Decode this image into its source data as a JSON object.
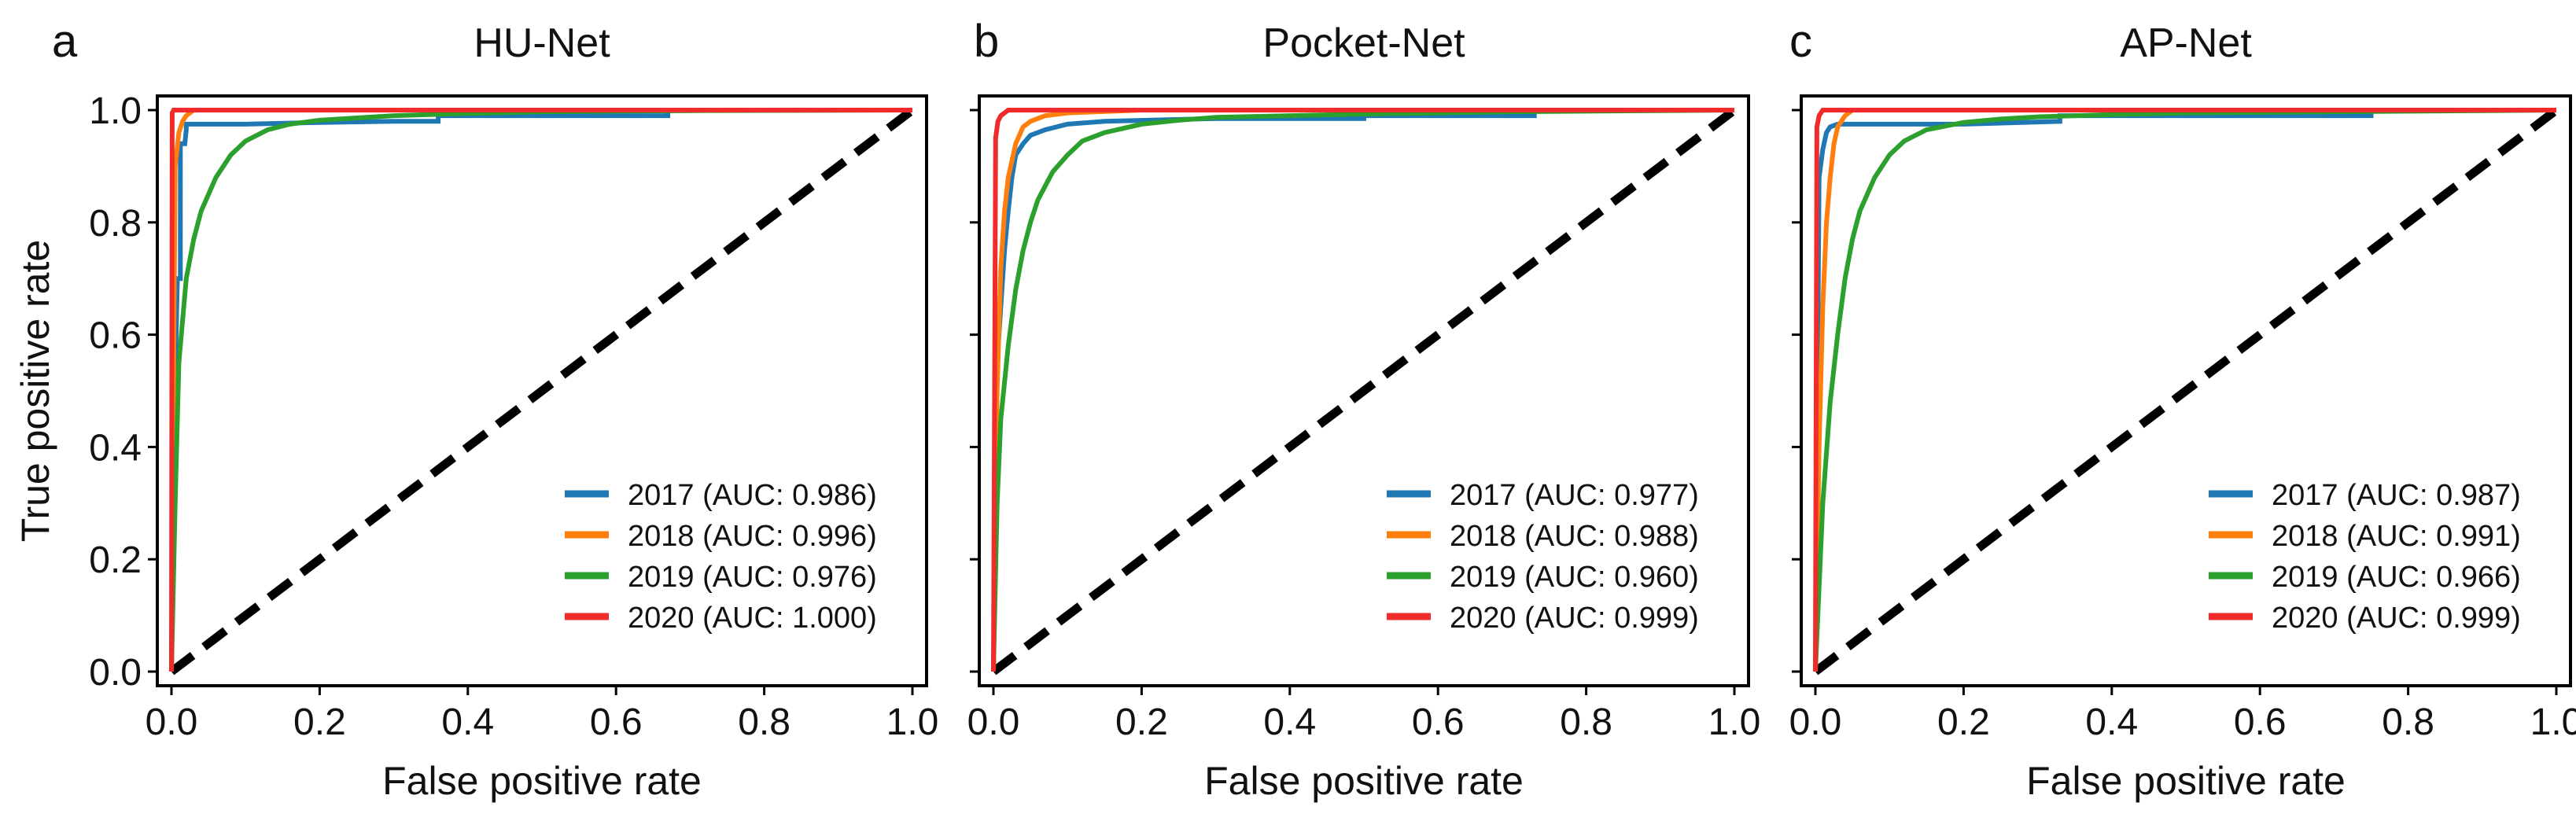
{
  "figure": {
    "xlabel": "False positive rate",
    "ylabel": "True positive rate",
    "ticks": [
      "0.0",
      "0.2",
      "0.4",
      "0.6",
      "0.8",
      "1.0"
    ]
  },
  "chart_data": [
    {
      "type": "line",
      "panel": "a",
      "title": "HU-Net",
      "xlabel": "False positive rate",
      "ylabel": "True positive rate",
      "xlim": [
        0,
        1
      ],
      "ylim": [
        0,
        1
      ],
      "legend_position": "lower-right",
      "diagonal": true,
      "series": [
        {
          "name": "2017",
          "label": "2017 (AUC: 0.986)",
          "color": "#1f77b4",
          "x": [
            0,
            0.003,
            0.008,
            0.012,
            0.012,
            0.018,
            0.02,
            0.02,
            0.05,
            0.1,
            0.2,
            0.3,
            0.36,
            0.36,
            0.5,
            0.67,
            0.67,
            1.0
          ],
          "y": [
            0,
            0.4,
            0.7,
            0.7,
            0.94,
            0.94,
            0.965,
            0.975,
            0.975,
            0.975,
            0.978,
            0.98,
            0.98,
            0.99,
            0.99,
            0.99,
            1.0,
            1.0
          ]
        },
        {
          "name": "2018",
          "label": "2018 (AUC: 0.996)",
          "color": "#ff7f0e",
          "x": [
            0,
            0.005,
            0.01,
            0.015,
            0.02,
            0.03,
            1.0
          ],
          "y": [
            0,
            0.9,
            0.96,
            0.98,
            0.99,
            1.0,
            1.0
          ]
        },
        {
          "name": "2019",
          "label": "2019 (AUC: 0.976)",
          "color": "#2ca02c",
          "x": [
            0,
            0.005,
            0.01,
            0.02,
            0.03,
            0.04,
            0.06,
            0.08,
            0.1,
            0.13,
            0.16,
            0.2,
            0.25,
            0.3,
            0.4,
            0.5,
            0.7,
            1.0
          ],
          "y": [
            0,
            0.3,
            0.55,
            0.7,
            0.77,
            0.82,
            0.88,
            0.92,
            0.945,
            0.965,
            0.975,
            0.982,
            0.986,
            0.99,
            0.994,
            0.997,
            0.999,
            1.0
          ]
        },
        {
          "name": "2020",
          "label": "2020 (AUC: 1.000)",
          "color": "#ef2b2b",
          "x": [
            0,
            0.001,
            0.003,
            1.0
          ],
          "y": [
            0,
            0.995,
            1.0,
            1.0
          ]
        }
      ]
    },
    {
      "type": "line",
      "panel": "b",
      "title": "Pocket-Net",
      "xlabel": "False positive rate",
      "ylabel": "True positive rate",
      "xlim": [
        0,
        1
      ],
      "ylim": [
        0,
        1
      ],
      "legend_position": "lower-right",
      "diagonal": true,
      "series": [
        {
          "name": "2017",
          "label": "2017 (AUC: 0.977)",
          "color": "#1f77b4",
          "x": [
            0,
            0.005,
            0.01,
            0.015,
            0.02,
            0.025,
            0.03,
            0.04,
            0.05,
            0.07,
            0.1,
            0.15,
            0.3,
            0.5,
            0.5,
            0.73,
            0.73,
            1.0
          ],
          "y": [
            0,
            0.55,
            0.65,
            0.75,
            0.82,
            0.88,
            0.92,
            0.94,
            0.955,
            0.965,
            0.975,
            0.98,
            0.985,
            0.985,
            0.99,
            0.99,
            1.0,
            1.0
          ]
        },
        {
          "name": "2018",
          "label": "2018 (AUC: 0.988)",
          "color": "#ff7f0e",
          "x": [
            0,
            0.005,
            0.01,
            0.015,
            0.02,
            0.03,
            0.04,
            0.05,
            0.07,
            0.1,
            0.2,
            1.0
          ],
          "y": [
            0,
            0.5,
            0.72,
            0.82,
            0.88,
            0.94,
            0.97,
            0.98,
            0.99,
            0.995,
            1.0,
            1.0
          ]
        },
        {
          "name": "2019",
          "label": "2019 (AUC: 0.960)",
          "color": "#2ca02c",
          "x": [
            0,
            0.005,
            0.01,
            0.02,
            0.03,
            0.04,
            0.05,
            0.06,
            0.08,
            0.1,
            0.12,
            0.15,
            0.2,
            0.25,
            0.3,
            0.4,
            0.5,
            0.7,
            1.0
          ],
          "y": [
            0,
            0.3,
            0.45,
            0.58,
            0.68,
            0.75,
            0.8,
            0.84,
            0.89,
            0.92,
            0.945,
            0.96,
            0.975,
            0.982,
            0.987,
            0.99,
            0.993,
            0.997,
            1.0
          ]
        },
        {
          "name": "2020",
          "label": "2020 (AUC: 0.999)",
          "color": "#ef2b2b",
          "x": [
            0,
            0.003,
            0.006,
            0.01,
            0.015,
            0.02,
            1.0
          ],
          "y": [
            0,
            0.95,
            0.98,
            0.99,
            0.995,
            1.0,
            1.0
          ]
        }
      ]
    },
    {
      "type": "line",
      "panel": "c",
      "title": "AP-Net",
      "xlabel": "False positive rate",
      "ylabel": "True positive rate",
      "xlim": [
        0,
        1
      ],
      "ylim": [
        0,
        1
      ],
      "legend_position": "lower-right",
      "diagonal": true,
      "series": [
        {
          "name": "2017",
          "label": "2017 (AUC: 0.987)",
          "color": "#1f77b4",
          "x": [
            0,
            0.005,
            0.01,
            0.015,
            0.02,
            0.03,
            0.1,
            0.2,
            0.33,
            0.33,
            0.5,
            0.75,
            0.75,
            1.0
          ],
          "y": [
            0,
            0.88,
            0.93,
            0.96,
            0.97,
            0.975,
            0.975,
            0.975,
            0.98,
            0.99,
            0.99,
            0.99,
            1.0,
            1.0
          ]
        },
        {
          "name": "2018",
          "label": "2018 (AUC: 0.991)",
          "color": "#ff7f0e",
          "x": [
            0,
            0.005,
            0.01,
            0.015,
            0.02,
            0.025,
            0.03,
            0.04,
            0.05,
            1.0
          ],
          "y": [
            0,
            0.4,
            0.65,
            0.8,
            0.88,
            0.94,
            0.97,
            0.99,
            1.0,
            1.0
          ]
        },
        {
          "name": "2019",
          "label": "2019 (AUC: 0.966)",
          "color": "#2ca02c",
          "x": [
            0,
            0.005,
            0.01,
            0.02,
            0.03,
            0.04,
            0.05,
            0.06,
            0.08,
            0.1,
            0.12,
            0.15,
            0.2,
            0.25,
            0.3,
            0.4,
            0.5,
            1.0
          ],
          "y": [
            0,
            0.15,
            0.3,
            0.48,
            0.6,
            0.7,
            0.77,
            0.82,
            0.88,
            0.92,
            0.945,
            0.965,
            0.978,
            0.984,
            0.988,
            0.992,
            0.995,
            1.0
          ]
        },
        {
          "name": "2020",
          "label": "2020 (AUC: 0.999)",
          "color": "#ef2b2b",
          "x": [
            0,
            0.002,
            0.005,
            0.01,
            1.0
          ],
          "y": [
            0,
            0.97,
            0.99,
            1.0,
            1.0
          ]
        }
      ]
    }
  ]
}
